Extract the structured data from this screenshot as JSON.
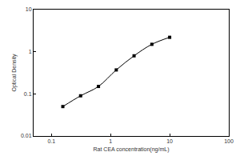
{
  "chart_data": {
    "type": "line",
    "x_label": "Rat CEA concentration(ng/mL)",
    "y_label": "Optical Density",
    "x": [
      0.156,
      0.312,
      0.625,
      1.25,
      2.5,
      5,
      10
    ],
    "values": [
      0.05,
      0.09,
      0.15,
      0.37,
      0.8,
      1.5,
      2.2
    ],
    "color": "#000000",
    "marker": "square",
    "line_style": "solid",
    "log": true,
    "grid": false,
    "xlim": [
      0.05,
      100
    ],
    "xticks": [
      0.1,
      1,
      10,
      100
    ],
    "ylim": [
      0.01,
      10
    ],
    "yticks": [
      0.01,
      0.1,
      1,
      10
    ]
  }
}
